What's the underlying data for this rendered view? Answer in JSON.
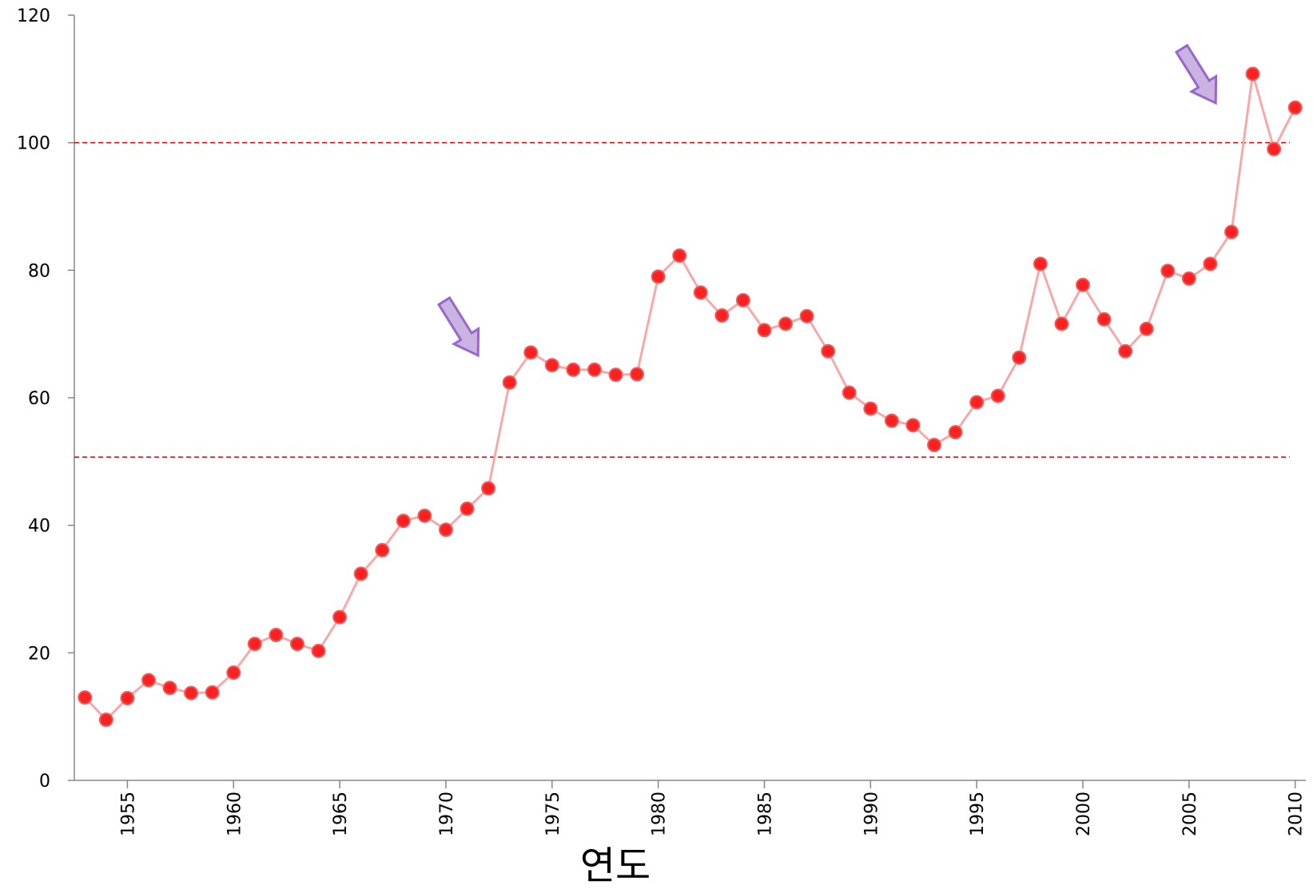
{
  "chart_data": {
    "type": "line",
    "x_label": "연도",
    "x": [
      1953,
      1954,
      1955,
      1956,
      1957,
      1958,
      1959,
      1960,
      1961,
      1962,
      1963,
      1964,
      1965,
      1966,
      1967,
      1968,
      1969,
      1970,
      1971,
      1972,
      1973,
      1974,
      1975,
      1976,
      1977,
      1978,
      1979,
      1980,
      1981,
      1982,
      1983,
      1984,
      1985,
      1986,
      1987,
      1988,
      1989,
      1990,
      1991,
      1992,
      1993,
      1994,
      1995,
      1996,
      1997,
      1998,
      1999,
      2000,
      2001,
      2002,
      2003,
      2004,
      2005,
      2006,
      2007,
      2008,
      2009,
      2010
    ],
    "values": [
      13,
      9.5,
      12.9,
      15.7,
      14.5,
      13.7,
      13.8,
      16.9,
      21.4,
      22.8,
      21.4,
      20.3,
      25.6,
      32.4,
      36.1,
      40.7,
      41.5,
      39.3,
      42.6,
      45.8,
      62.4,
      67.1,
      65.1,
      64.4,
      64.4,
      63.6,
      63.7,
      79,
      82.3,
      76.5,
      72.9,
      75.3,
      70.6,
      71.6,
      72.8,
      67.3,
      60.8,
      58.3,
      56.4,
      55.7,
      52.6,
      54.6,
      59.3,
      60.3,
      66.3,
      81,
      71.6,
      77.7,
      72.3,
      67.3,
      70.8,
      79.9,
      78.7,
      81,
      86,
      110.8,
      99,
      105.5
    ],
    "marker_color": "#ff2020",
    "line_color": "#f7a8a8",
    "reference_lines": [
      {
        "value": 100,
        "color": "#e00000"
      },
      {
        "value": 50.7,
        "color": "#e00000"
      }
    ],
    "xlim": [
      1952.5,
      2010.5
    ],
    "xticks": [
      1955,
      1960,
      1965,
      1970,
      1975,
      1980,
      1985,
      1990,
      1995,
      2000,
      2005,
      2010
    ],
    "ylim": [
      0,
      120
    ],
    "yticks": [
      0,
      20,
      40,
      60,
      80,
      100,
      120
    ]
  }
}
